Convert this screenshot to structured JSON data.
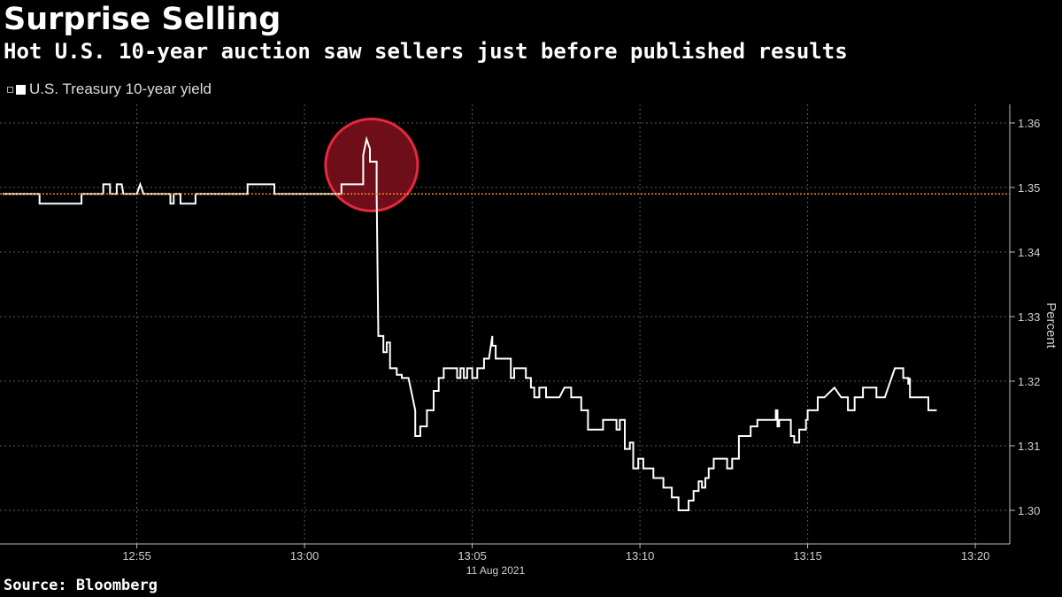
{
  "title": "Surprise Selling",
  "subtitle": "Hot U.S. 10-year auction saw sellers just before published results",
  "legend_label": "U.S. Treasury 10-year yield",
  "source": "Source: Bloomberg",
  "colors": {
    "background": "#000000",
    "series": "#ffffff",
    "reference_line": "#f08a24",
    "highlight_fill": "#7a0f1c",
    "highlight_stroke": "#e8283c",
    "grid": "#5a5a5a"
  },
  "chart_data": {
    "type": "line",
    "title": "Surprise Selling",
    "subtitle": "Hot U.S. 10-year auction saw sellers just before published results",
    "xlabel": "11 Aug 2021",
    "ylabel": "Percent",
    "x_ticks": [
      {
        "value": 55,
        "label": "12:55"
      },
      {
        "value": 60,
        "label": "13:00"
      },
      {
        "value": 65,
        "label": "13:05"
      },
      {
        "value": 70,
        "label": "13:10"
      },
      {
        "value": 75,
        "label": "13:15"
      },
      {
        "value": 80,
        "label": "13:20"
      }
    ],
    "x_unit": "minutes after 12:00, 11 Aug 2021",
    "y_ticks": [
      1.3,
      1.31,
      1.32,
      1.33,
      1.34,
      1.35,
      1.36
    ],
    "xlim": [
      51,
      80
    ],
    "ylim": [
      1.2975,
      1.3635
    ],
    "grid": true,
    "y_axis_position": "right",
    "legend_position": "top-left",
    "reference_line": {
      "y": 1.349,
      "style": "dotted",
      "color": "#f08a24"
    },
    "highlight_circle": {
      "x": 62.0,
      "y": 1.3535
    },
    "series": [
      {
        "name": "U.S. Treasury 10-year yield",
        "step": true,
        "points": [
          [
            51.0,
            1.349
          ],
          [
            52.1,
            1.349
          ],
          [
            52.1,
            1.3475
          ],
          [
            53.35,
            1.3475
          ],
          [
            53.35,
            1.349
          ],
          [
            54.0,
            1.349
          ],
          [
            54.0,
            1.3505
          ],
          [
            54.2,
            1.3505
          ],
          [
            54.2,
            1.349
          ],
          [
            54.4,
            1.349
          ],
          [
            54.4,
            1.3505
          ],
          [
            54.55,
            1.3505
          ],
          [
            54.6,
            1.349
          ],
          [
            55.0,
            1.349
          ],
          [
            55.1,
            1.3505
          ],
          [
            55.2,
            1.349
          ],
          [
            56.0,
            1.349
          ],
          [
            56.0,
            1.3475
          ],
          [
            56.1,
            1.3475
          ],
          [
            56.1,
            1.349
          ],
          [
            56.3,
            1.349
          ],
          [
            56.3,
            1.3475
          ],
          [
            56.75,
            1.3475
          ],
          [
            56.75,
            1.349
          ],
          [
            58.3,
            1.349
          ],
          [
            58.3,
            1.3505
          ],
          [
            59.1,
            1.3505
          ],
          [
            59.1,
            1.349
          ],
          [
            61.1,
            1.349
          ],
          [
            61.1,
            1.3505
          ],
          [
            61.75,
            1.3505
          ],
          [
            61.75,
            1.355
          ],
          [
            61.85,
            1.3575
          ],
          [
            61.95,
            1.356
          ],
          [
            61.95,
            1.354
          ],
          [
            62.15,
            1.354
          ],
          [
            62.15,
            1.349
          ],
          [
            62.2,
            1.327
          ],
          [
            62.35,
            1.327
          ],
          [
            62.35,
            1.3245
          ],
          [
            62.45,
            1.3245
          ],
          [
            62.45,
            1.326
          ],
          [
            62.55,
            1.326
          ],
          [
            62.55,
            1.322
          ],
          [
            62.75,
            1.322
          ],
          [
            62.75,
            1.321
          ],
          [
            62.9,
            1.321
          ],
          [
            62.9,
            1.3205
          ],
          [
            63.1,
            1.3205
          ],
          [
            63.3,
            1.3155
          ],
          [
            63.3,
            1.3115
          ],
          [
            63.45,
            1.3115
          ],
          [
            63.45,
            1.313
          ],
          [
            63.65,
            1.313
          ],
          [
            63.65,
            1.3155
          ],
          [
            63.85,
            1.3155
          ],
          [
            63.85,
            1.3185
          ],
          [
            64.0,
            1.3185
          ],
          [
            64.0,
            1.3205
          ],
          [
            64.15,
            1.3205
          ],
          [
            64.15,
            1.322
          ],
          [
            64.55,
            1.322
          ],
          [
            64.55,
            1.3205
          ],
          [
            64.65,
            1.3205
          ],
          [
            64.65,
            1.322
          ],
          [
            64.75,
            1.322
          ],
          [
            64.75,
            1.3205
          ],
          [
            64.85,
            1.3205
          ],
          [
            64.85,
            1.322
          ],
          [
            65.0,
            1.322
          ],
          [
            65.0,
            1.3205
          ],
          [
            65.15,
            1.3205
          ],
          [
            65.15,
            1.322
          ],
          [
            65.35,
            1.322
          ],
          [
            65.35,
            1.3235
          ],
          [
            65.5,
            1.3235
          ],
          [
            65.6,
            1.327
          ],
          [
            65.6,
            1.3255
          ],
          [
            65.7,
            1.3255
          ],
          [
            65.7,
            1.3235
          ],
          [
            66.15,
            1.3235
          ],
          [
            66.15,
            1.3205
          ],
          [
            66.25,
            1.3205
          ],
          [
            66.25,
            1.322
          ],
          [
            66.6,
            1.322
          ],
          [
            66.6,
            1.3205
          ],
          [
            66.75,
            1.3205
          ],
          [
            66.75,
            1.319
          ],
          [
            66.85,
            1.319
          ],
          [
            66.85,
            1.3175
          ],
          [
            67.0,
            1.3175
          ],
          [
            67.0,
            1.319
          ],
          [
            67.2,
            1.319
          ],
          [
            67.2,
            1.3175
          ],
          [
            67.6,
            1.3175
          ],
          [
            67.75,
            1.319
          ],
          [
            67.95,
            1.319
          ],
          [
            67.95,
            1.3175
          ],
          [
            68.25,
            1.3175
          ],
          [
            68.25,
            1.3155
          ],
          [
            68.45,
            1.3155
          ],
          [
            68.45,
            1.3125
          ],
          [
            68.9,
            1.3125
          ],
          [
            68.9,
            1.314
          ],
          [
            69.3,
            1.314
          ],
          [
            69.3,
            1.3125
          ],
          [
            69.4,
            1.3125
          ],
          [
            69.4,
            1.314
          ],
          [
            69.55,
            1.314
          ],
          [
            69.55,
            1.3095
          ],
          [
            69.7,
            1.3095
          ],
          [
            69.7,
            1.3105
          ],
          [
            69.8,
            1.3105
          ],
          [
            69.8,
            1.3065
          ],
          [
            69.95,
            1.3065
          ],
          [
            69.95,
            1.308
          ],
          [
            70.1,
            1.308
          ],
          [
            70.1,
            1.3065
          ],
          [
            70.4,
            1.3065
          ],
          [
            70.4,
            1.305
          ],
          [
            70.7,
            1.305
          ],
          [
            70.7,
            1.3035
          ],
          [
            70.95,
            1.3035
          ],
          [
            70.95,
            1.302
          ],
          [
            71.15,
            1.302
          ],
          [
            71.15,
            1.3
          ],
          [
            71.45,
            1.3
          ],
          [
            71.45,
            1.3015
          ],
          [
            71.6,
            1.3015
          ],
          [
            71.6,
            1.303
          ],
          [
            71.75,
            1.303
          ],
          [
            71.75,
            1.3045
          ],
          [
            71.85,
            1.3045
          ],
          [
            71.85,
            1.3035
          ],
          [
            71.95,
            1.3035
          ],
          [
            71.95,
            1.305
          ],
          [
            72.05,
            1.305
          ],
          [
            72.05,
            1.3065
          ],
          [
            72.2,
            1.3065
          ],
          [
            72.2,
            1.308
          ],
          [
            72.6,
            1.308
          ],
          [
            72.6,
            1.3065
          ],
          [
            72.75,
            1.3065
          ],
          [
            72.75,
            1.308
          ],
          [
            72.95,
            1.308
          ],
          [
            72.95,
            1.3115
          ],
          [
            73.3,
            1.3115
          ],
          [
            73.3,
            1.313
          ],
          [
            73.5,
            1.313
          ],
          [
            73.5,
            1.314
          ],
          [
            74.05,
            1.314
          ],
          [
            74.05,
            1.3155
          ],
          [
            74.1,
            1.3155
          ],
          [
            74.1,
            1.313
          ],
          [
            74.15,
            1.313
          ],
          [
            74.15,
            1.314
          ],
          [
            74.5,
            1.314
          ],
          [
            74.5,
            1.3115
          ],
          [
            74.6,
            1.3115
          ],
          [
            74.6,
            1.3105
          ],
          [
            74.75,
            1.3105
          ],
          [
            74.75,
            1.3125
          ],
          [
            74.95,
            1.3125
          ],
          [
            74.95,
            1.314
          ],
          [
            75.0,
            1.314
          ],
          [
            75.0,
            1.3155
          ],
          [
            75.3,
            1.3155
          ],
          [
            75.3,
            1.3175
          ],
          [
            75.5,
            1.3175
          ],
          [
            75.8,
            1.319
          ],
          [
            76.0,
            1.3175
          ],
          [
            76.2,
            1.3175
          ],
          [
            76.2,
            1.3155
          ],
          [
            76.4,
            1.3155
          ],
          [
            76.4,
            1.3175
          ],
          [
            76.65,
            1.3175
          ],
          [
            76.65,
            1.319
          ],
          [
            77.05,
            1.319
          ],
          [
            77.05,
            1.3175
          ],
          [
            77.3,
            1.3175
          ],
          [
            77.5,
            1.3205
          ],
          [
            77.6,
            1.322
          ],
          [
            77.85,
            1.322
          ],
          [
            77.85,
            1.3205
          ],
          [
            78.0,
            1.3205
          ],
          [
            78.0,
            1.3195
          ],
          [
            78.05,
            1.3205
          ],
          [
            78.05,
            1.3175
          ],
          [
            78.6,
            1.3175
          ],
          [
            78.6,
            1.3155
          ],
          [
            78.85,
            1.3155
          ]
        ]
      }
    ]
  }
}
